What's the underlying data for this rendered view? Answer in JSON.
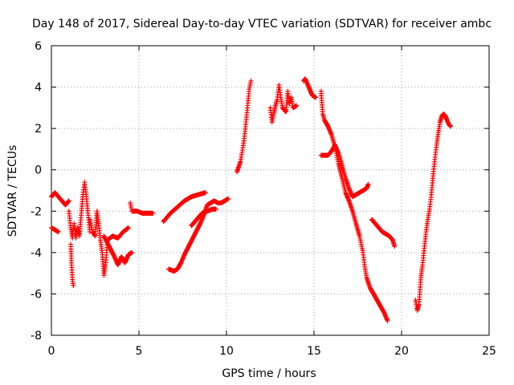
{
  "chart_data": {
    "type": "scatter",
    "title": "Day 148 of 2017, Sidereal Day-to-day VTEC variation (SDTVAR) for receiver ambc",
    "xlabel": "GPS time / hours",
    "ylabel": "SDTVAR / TECUs",
    "xlim": [
      0,
      25
    ],
    "ylim": [
      -8,
      6
    ],
    "x_ticks": [
      0,
      5,
      10,
      15,
      20,
      25
    ],
    "y_ticks": [
      -8,
      -6,
      -4,
      -2,
      0,
      2,
      4,
      6
    ],
    "grid": true,
    "marker": "+",
    "colors": {
      "series": "#ff0000",
      "grid": "#a0a0a0",
      "axis": "#000000"
    },
    "series": [
      {
        "name": "s1",
        "points": [
          [
            0.0,
            -1.3
          ],
          [
            0.2,
            -1.1
          ],
          [
            0.4,
            -1.3
          ],
          [
            0.6,
            -1.5
          ],
          [
            0.8,
            -1.7
          ],
          [
            1.0,
            -1.5
          ]
        ]
      },
      {
        "name": "s2",
        "points": [
          [
            0.0,
            -2.8
          ],
          [
            0.2,
            -2.9
          ],
          [
            0.4,
            -3.0
          ]
        ]
      },
      {
        "name": "s3",
        "points": [
          [
            1.0,
            -2.0
          ],
          [
            1.1,
            -2.8
          ],
          [
            1.2,
            -3.3
          ],
          [
            1.3,
            -2.6
          ],
          [
            1.4,
            -3.3
          ],
          [
            1.5,
            -2.8
          ],
          [
            1.6,
            -3.2
          ],
          [
            1.7,
            -2.2
          ],
          [
            1.8,
            -1.2
          ],
          [
            1.9,
            -0.6
          ],
          [
            2.0,
            -1.3
          ],
          [
            2.1,
            -2.2
          ],
          [
            2.2,
            -3.0
          ]
        ]
      },
      {
        "name": "s4",
        "points": [
          [
            1.1,
            -3.6
          ],
          [
            1.15,
            -4.5
          ],
          [
            1.2,
            -5.3
          ],
          [
            1.25,
            -5.6
          ]
        ]
      },
      {
        "name": "s5",
        "points": [
          [
            2.2,
            -2.4
          ],
          [
            2.35,
            -3.0
          ],
          [
            2.5,
            -3.2
          ],
          [
            2.6,
            -2.0
          ],
          [
            2.7,
            -2.6
          ],
          [
            2.8,
            -3.4
          ],
          [
            2.9,
            -4.0
          ],
          [
            3.0,
            -5.1
          ],
          [
            3.1,
            -4.6
          ],
          [
            3.2,
            -3.4
          ],
          [
            3.5,
            -3.2
          ],
          [
            3.8,
            -3.3
          ],
          [
            4.1,
            -3.0
          ],
          [
            4.4,
            -2.8
          ]
        ]
      },
      {
        "name": "s6",
        "points": [
          [
            3.0,
            -3.2
          ],
          [
            3.3,
            -3.7
          ],
          [
            3.6,
            -4.2
          ],
          [
            3.8,
            -4.6
          ],
          [
            4.0,
            -4.2
          ],
          [
            4.2,
            -4.5
          ],
          [
            4.4,
            -4.1
          ],
          [
            4.6,
            -4.0
          ]
        ]
      },
      {
        "name": "s7",
        "points": [
          [
            4.5,
            -1.6
          ],
          [
            4.6,
            -2.0
          ],
          [
            4.9,
            -2.0
          ],
          [
            5.2,
            -2.1
          ],
          [
            5.5,
            -2.1
          ],
          [
            5.8,
            -2.1
          ]
        ]
      },
      {
        "name": "s8",
        "points": [
          [
            6.4,
            -2.5
          ],
          [
            6.8,
            -2.1
          ],
          [
            7.2,
            -1.8
          ],
          [
            7.6,
            -1.5
          ],
          [
            8.0,
            -1.3
          ],
          [
            8.4,
            -1.2
          ],
          [
            8.8,
            -1.1
          ]
        ]
      },
      {
        "name": "s9",
        "points": [
          [
            6.7,
            -4.8
          ],
          [
            7.0,
            -4.9
          ],
          [
            7.2,
            -4.8
          ],
          [
            7.4,
            -4.5
          ],
          [
            7.6,
            -4.1
          ],
          [
            7.9,
            -3.6
          ],
          [
            8.2,
            -3.1
          ],
          [
            8.5,
            -2.6
          ],
          [
            8.7,
            -2.2
          ],
          [
            8.9,
            -1.7
          ],
          [
            9.1,
            -1.6
          ],
          [
            9.3,
            -1.5
          ],
          [
            9.5,
            -1.6
          ],
          [
            9.7,
            -1.6
          ],
          [
            9.9,
            -1.5
          ],
          [
            10.1,
            -1.4
          ]
        ]
      },
      {
        "name": "s10",
        "points": [
          [
            8.0,
            -2.7
          ],
          [
            8.3,
            -2.4
          ],
          [
            8.6,
            -2.1
          ],
          [
            8.9,
            -2.0
          ],
          [
            9.2,
            -1.9
          ],
          [
            9.4,
            -1.9
          ]
        ]
      },
      {
        "name": "s11",
        "points": [
          [
            10.6,
            -0.1
          ],
          [
            10.8,
            0.4
          ],
          [
            11.0,
            1.4
          ],
          [
            11.1,
            2.2
          ],
          [
            11.2,
            3.0
          ],
          [
            11.3,
            3.9
          ],
          [
            11.4,
            4.3
          ]
        ]
      },
      {
        "name": "s12",
        "points": [
          [
            12.5,
            3.0
          ],
          [
            12.6,
            2.3
          ],
          [
            12.7,
            2.7
          ],
          [
            12.8,
            3.1
          ],
          [
            12.9,
            3.4
          ],
          [
            13.0,
            4.1
          ],
          [
            13.1,
            3.5
          ],
          [
            13.2,
            3.0
          ],
          [
            13.4,
            2.8
          ],
          [
            13.5,
            3.8
          ],
          [
            13.6,
            3.2
          ],
          [
            13.7,
            3.5
          ],
          [
            13.8,
            3.0
          ],
          [
            14.0,
            3.1
          ]
        ]
      },
      {
        "name": "s13",
        "points": [
          [
            14.4,
            4.3
          ],
          [
            14.5,
            4.4
          ],
          [
            14.7,
            4.0
          ],
          [
            14.9,
            3.6
          ],
          [
            15.1,
            3.5
          ]
        ]
      },
      {
        "name": "s14",
        "points": [
          [
            15.4,
            3.8
          ],
          [
            15.5,
            2.7
          ],
          [
            15.6,
            2.4
          ],
          [
            15.8,
            2.1
          ],
          [
            16.0,
            1.7
          ],
          [
            16.2,
            1.1
          ],
          [
            16.4,
            0.3
          ],
          [
            16.6,
            -0.4
          ],
          [
            16.8,
            -1.1
          ],
          [
            17.0,
            -1.5
          ],
          [
            17.2,
            -2.0
          ],
          [
            17.4,
            -2.6
          ],
          [
            17.6,
            -3.2
          ],
          [
            17.8,
            -4.0
          ],
          [
            17.9,
            -4.7
          ],
          [
            18.0,
            -5.2
          ],
          [
            18.2,
            -5.7
          ],
          [
            18.4,
            -6.0
          ],
          [
            18.6,
            -6.3
          ],
          [
            18.8,
            -6.6
          ],
          [
            19.0,
            -6.9
          ],
          [
            19.2,
            -7.3
          ]
        ]
      },
      {
        "name": "s15",
        "points": [
          [
            15.4,
            0.7
          ],
          [
            15.6,
            0.7
          ],
          [
            15.8,
            0.7
          ],
          [
            16.0,
            0.9
          ],
          [
            16.2,
            1.2
          ],
          [
            16.4,
            0.8
          ],
          [
            16.6,
            0.2
          ],
          [
            16.8,
            -0.4
          ],
          [
            17.0,
            -0.9
          ],
          [
            17.2,
            -1.3
          ],
          [
            17.4,
            -1.2
          ],
          [
            17.6,
            -1.1
          ],
          [
            17.8,
            -1.0
          ],
          [
            18.0,
            -0.9
          ],
          [
            18.1,
            -0.7
          ]
        ]
      },
      {
        "name": "s16",
        "points": [
          [
            18.3,
            -2.4
          ],
          [
            18.5,
            -2.6
          ],
          [
            18.7,
            -2.8
          ],
          [
            18.9,
            -3.0
          ],
          [
            19.1,
            -3.1
          ],
          [
            19.3,
            -3.2
          ],
          [
            19.5,
            -3.4
          ],
          [
            19.6,
            -3.7
          ]
        ]
      },
      {
        "name": "s17",
        "points": [
          [
            20.8,
            -6.3
          ],
          [
            20.9,
            -6.8
          ],
          [
            21.0,
            -6.5
          ],
          [
            21.1,
            -5.2
          ],
          [
            21.2,
            -4.6
          ],
          [
            21.3,
            -3.8
          ],
          [
            21.4,
            -3.0
          ],
          [
            21.5,
            -2.4
          ],
          [
            21.6,
            -1.9
          ],
          [
            21.7,
            -1.2
          ],
          [
            21.8,
            -0.3
          ],
          [
            21.9,
            0.5
          ],
          [
            22.0,
            1.2
          ],
          [
            22.1,
            1.8
          ],
          [
            22.2,
            2.3
          ],
          [
            22.3,
            2.6
          ],
          [
            22.4,
            2.7
          ],
          [
            22.5,
            2.6
          ],
          [
            22.6,
            2.4
          ],
          [
            22.7,
            2.2
          ],
          [
            22.8,
            2.1
          ]
        ]
      }
    ]
  }
}
